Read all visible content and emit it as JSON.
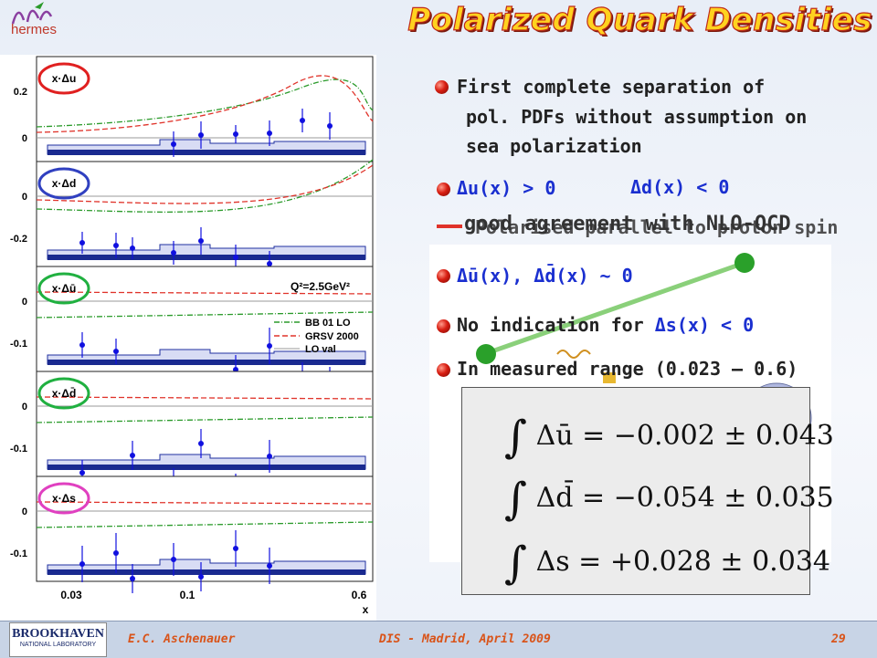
{
  "header": {
    "logo_label": "hermes",
    "title": "Polarized Quark Densities"
  },
  "plot": {
    "panel_labels": [
      "x·Δu",
      "x·Δd",
      "x·Δū",
      "x·Δd̄",
      "x·Δs"
    ],
    "panel_ticks": [
      [
        "0.2",
        "0"
      ],
      [
        "0",
        "-0.2"
      ],
      [
        "0",
        "-0.1"
      ],
      [
        "0",
        "-0.1"
      ],
      [
        "0",
        "-0.1"
      ]
    ],
    "q2_label": "Q²=2.5GeV²",
    "x_ticks": [
      "0.03",
      "0.1",
      "0.6"
    ],
    "x_label": "x",
    "legend": [
      "BB 01 LO",
      "GRSV 2000",
      "LO val"
    ]
  },
  "bullets": {
    "b1_line1": "First complete separation of",
    "b1_line2": "pol. PDFs without assumption on",
    "b1_line3": "sea polarization",
    "du_pos": "Δu(x) > 0",
    "dd_neg": "Δd(x) < 0",
    "overlay_text": "Polarised parallel to proton spin",
    "overlay_text2": "good agreement with NLO-QCD",
    "sea": "Δū(x), Δd̄(x) ~ 0",
    "strange": "No indication for ",
    "strange_val": "Δs(x) < 0",
    "range": "In measured range (0.023 – 0.6)"
  },
  "integrals": {
    "u_lhs": "Δū",
    "u_rhs": "= −0.002 ± 0.043",
    "d_lhs": "Δd̄",
    "d_rhs": "= −0.054 ± 0.035",
    "s_lhs": "Δs",
    "s_rhs": "= +0.028 ± 0.034"
  },
  "footer": {
    "lab_line1": "BROOKHAVEN",
    "lab_line2": "NATIONAL LABORATORY",
    "author": "E.C. Aschenauer",
    "conference": "DIS - Madrid, April 2009",
    "page_number": "29"
  },
  "colors": {
    "title_fill": "#ffd21f",
    "title_outline": "#c02a18",
    "highlight_blue": "#1a2fd0",
    "point_blue": "#1010e0",
    "curve_green": "#2a9a2a",
    "curve_red": "#e0332a"
  }
}
